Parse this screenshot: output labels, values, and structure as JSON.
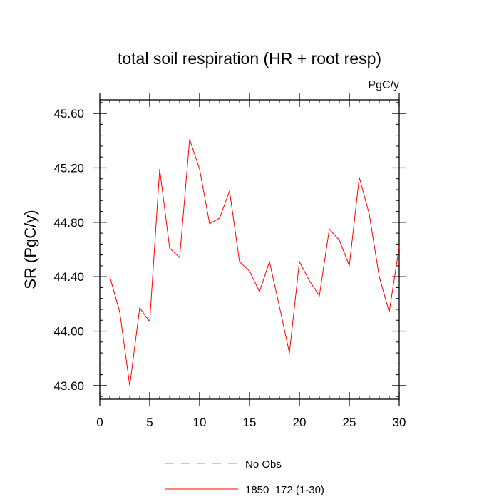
{
  "chart_data": {
    "type": "line",
    "title": "total soil respiration (HR + root resp)",
    "units_label": "PgC/y",
    "xlabel": "",
    "ylabel": "SR  (PgC/y)",
    "xlim": [
      0,
      30
    ],
    "ylim": [
      43.5,
      45.7
    ],
    "x_ticks": [
      0,
      5,
      10,
      15,
      20,
      25,
      30
    ],
    "x_tick_labels": [
      "0",
      "5",
      "10",
      "15",
      "20",
      "25",
      "30"
    ],
    "y_ticks": [
      43.6,
      44.0,
      44.4,
      44.8,
      45.2,
      45.6
    ],
    "y_tick_labels": [
      "43.60",
      "44.00",
      "44.40",
      "44.80",
      "45.20",
      "45.60"
    ],
    "grid": false,
    "legend_position": "bottom-center",
    "series": [
      {
        "name": "1850_172 (1-30)",
        "color": "#ff0000",
        "dash": "solid",
        "x": [
          1,
          2,
          3,
          4,
          5,
          6,
          7,
          8,
          9,
          10,
          11,
          12,
          13,
          14,
          15,
          16,
          17,
          18,
          19,
          20,
          21,
          22,
          23,
          24,
          25,
          26,
          27,
          28,
          29,
          30
        ],
        "values": [
          44.4,
          44.14,
          43.6,
          44.17,
          44.07,
          45.19,
          44.61,
          44.54,
          45.41,
          45.19,
          44.79,
          44.83,
          45.03,
          44.51,
          44.44,
          44.29,
          44.51,
          44.18,
          43.84,
          44.51,
          44.37,
          44.26,
          44.75,
          44.67,
          44.48,
          45.13,
          44.86,
          44.4,
          44.14,
          44.62
        ]
      }
    ],
    "legend": [
      {
        "label": "No Obs",
        "color": "#8888ff",
        "dash": "dashed"
      },
      {
        "label": "1850_172 (1-30)",
        "color": "#ff0000",
        "dash": "solid"
      }
    ]
  }
}
